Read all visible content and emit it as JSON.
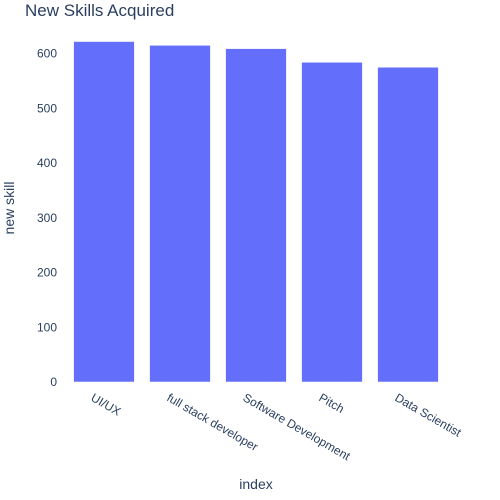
{
  "chart_data": {
    "type": "bar",
    "title": "New Skills Acquired",
    "xlabel": "index",
    "ylabel": "new skill",
    "categories": [
      "UI/UX",
      "full stack developer",
      "Software Development",
      "Pitch",
      "Data Scientist"
    ],
    "values": [
      622,
      615,
      609,
      584,
      575
    ],
    "ylim": [
      0,
      654
    ],
    "yticks": [
      0,
      100,
      200,
      300,
      400,
      500,
      600
    ],
    "bar_color": "#636efa",
    "grid": false,
    "legend": false
  }
}
